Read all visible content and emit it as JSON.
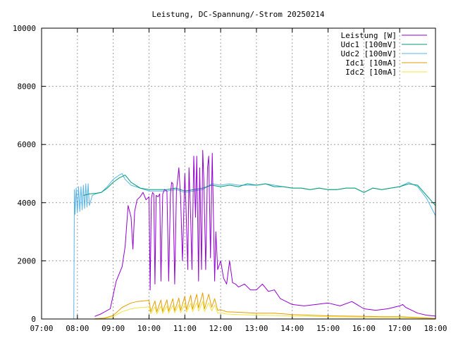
{
  "chart_data": {
    "type": "line",
    "title": "Leistung, DC-Spannung/-Strom 20250214",
    "xlabel": "",
    "ylabel": "",
    "xlim": [
      "07:00",
      "18:00"
    ],
    "ylim": [
      0,
      10000
    ],
    "grid": true,
    "legend_position": "top-right",
    "x_ticks": [
      "07:00",
      "08:00",
      "09:00",
      "10:00",
      "11:00",
      "12:00",
      "13:00",
      "14:00",
      "15:00",
      "16:00",
      "17:00",
      "18:00"
    ],
    "y_ticks": [
      0,
      2000,
      4000,
      6000,
      8000,
      10000
    ],
    "series": [
      {
        "name": "Leistung [W]",
        "color": "#9400d3",
        "x": [
          "08:29",
          "08:40",
          "08:55",
          "09:05",
          "09:15",
          "09:20",
          "09:25",
          "09:30",
          "09:33",
          "09:36",
          "09:40",
          "09:45",
          "09:50",
          "09:55",
          "10:00",
          "10:02",
          "10:04",
          "10:06",
          "10:08",
          "10:10",
          "10:12",
          "10:15",
          "10:18",
          "10:20",
          "10:23",
          "10:26",
          "10:30",
          "10:33",
          "10:36",
          "10:38",
          "10:40",
          "10:43",
          "10:46",
          "10:50",
          "10:53",
          "10:56",
          "11:00",
          "11:02",
          "11:05",
          "11:07",
          "11:10",
          "11:12",
          "11:15",
          "11:18",
          "11:20",
          "11:23",
          "11:25",
          "11:28",
          "11:30",
          "11:32",
          "11:35",
          "11:38",
          "11:40",
          "11:43",
          "11:46",
          "11:50",
          "11:52",
          "11:55",
          "12:00",
          "12:05",
          "12:10",
          "12:15",
          "12:20",
          "12:25",
          "12:30",
          "12:40",
          "12:50",
          "13:00",
          "13:10",
          "13:20",
          "13:30",
          "13:40",
          "14:00",
          "14:20",
          "14:40",
          "15:00",
          "15:20",
          "15:40",
          "16:00",
          "16:20",
          "16:40",
          "17:00",
          "17:05",
          "17:10",
          "17:20",
          "17:30",
          "17:45",
          "18:00"
        ],
        "values": [
          90,
          180,
          350,
          1300,
          1800,
          2500,
          3900,
          3500,
          2400,
          3700,
          4100,
          4200,
          4350,
          4100,
          4200,
          1000,
          4150,
          4350,
          4300,
          1200,
          4250,
          4200,
          4300,
          1300,
          4300,
          4450,
          4400,
          1300,
          4300,
          4700,
          4650,
          1200,
          4400,
          5200,
          4200,
          2000,
          5000,
          3800,
          1700,
          5200,
          3400,
          1700,
          5600,
          3500,
          5600,
          1300,
          5200,
          1700,
          5800,
          4700,
          1700,
          5200,
          5600,
          2100,
          5700,
          1300,
          3000,
          1700,
          2000,
          1400,
          1200,
          2000,
          1250,
          1200,
          1100,
          1200,
          1000,
          1000,
          1200,
          950,
          1000,
          700,
          500,
          450,
          500,
          550,
          450,
          600,
          350,
          300,
          350,
          450,
          500,
          400,
          300,
          200,
          130,
          100
        ]
      },
      {
        "name": "Udc1 [100mV]",
        "color": "#009e73",
        "x": [
          "08:10",
          "08:20",
          "08:30",
          "08:40",
          "08:50",
          "09:00",
          "09:10",
          "09:20",
          "09:30",
          "09:45",
          "10:00",
          "10:15",
          "10:30",
          "10:45",
          "11:00",
          "11:15",
          "11:30",
          "11:45",
          "12:00",
          "12:15",
          "12:30",
          "12:45",
          "13:00",
          "13:15",
          "13:30",
          "13:45",
          "14:00",
          "14:15",
          "14:30",
          "14:45",
          "15:00",
          "15:15",
          "15:30",
          "15:45",
          "16:00",
          "16:15",
          "16:30",
          "16:45",
          "17:00",
          "17:15",
          "17:30",
          "17:45",
          "18:00"
        ],
        "values": [
          4250,
          4300,
          4320,
          4350,
          4500,
          4700,
          4850,
          4950,
          4700,
          4500,
          4450,
          4450,
          4450,
          4500,
          4400,
          4450,
          4500,
          4600,
          4550,
          4600,
          4550,
          4650,
          4600,
          4650,
          4550,
          4550,
          4500,
          4500,
          4450,
          4500,
          4450,
          4450,
          4500,
          4500,
          4350,
          4500,
          4450,
          4500,
          4550,
          4650,
          4600,
          4250,
          3900
        ]
      },
      {
        "name": "Udc2 [100mV]",
        "color": "#56b4e9",
        "x": [
          "07:54",
          "07:55",
          "07:56",
          "07:58",
          "08:00",
          "08:02",
          "08:04",
          "08:06",
          "08:08",
          "08:10",
          "08:12",
          "08:14",
          "08:16",
          "08:18",
          "08:20",
          "08:25",
          "08:30",
          "08:40",
          "08:50",
          "09:00",
          "09:10",
          "09:15",
          "09:20",
          "09:30",
          "09:45",
          "10:00",
          "10:15",
          "10:30",
          "10:45",
          "11:00",
          "11:15",
          "11:30",
          "11:45",
          "12:00",
          "12:15",
          "12:30",
          "12:45",
          "13:00",
          "13:15",
          "13:30",
          "13:45",
          "14:00",
          "14:15",
          "14:30",
          "14:45",
          "15:00",
          "15:15",
          "15:30",
          "15:45",
          "16:00",
          "16:15",
          "16:30",
          "16:45",
          "17:00",
          "17:15",
          "17:30",
          "17:45",
          "18:00"
        ],
        "values": [
          0,
          4450,
          3600,
          4500,
          3650,
          4550,
          3700,
          4550,
          3750,
          4600,
          3800,
          4650,
          3850,
          4650,
          3900,
          4250,
          4300,
          4350,
          4550,
          4800,
          4950,
          5000,
          4800,
          4600,
          4500,
          4400,
          4400,
          4400,
          4450,
          4350,
          4400,
          4450,
          4650,
          4600,
          4650,
          4600,
          4600,
          4600,
          4650,
          4600,
          4550,
          4500,
          4500,
          4450,
          4500,
          4450,
          4450,
          4500,
          4500,
          4350,
          4500,
          4450,
          4500,
          4550,
          4700,
          4550,
          4150,
          3550
        ]
      },
      {
        "name": "Idc1 [10mA]",
        "color": "#e69f00",
        "x": [
          "08:29",
          "08:45",
          "09:00",
          "09:15",
          "09:30",
          "09:40",
          "09:50",
          "10:00",
          "10:03",
          "10:10",
          "10:13",
          "10:20",
          "10:23",
          "10:30",
          "10:33",
          "10:40",
          "10:43",
          "10:50",
          "10:53",
          "11:00",
          "11:03",
          "11:10",
          "11:13",
          "11:20",
          "11:23",
          "11:30",
          "11:33",
          "11:40",
          "11:45",
          "11:50",
          "11:55",
          "12:00",
          "12:10",
          "12:30",
          "13:00",
          "13:30",
          "14:00",
          "14:30",
          "15:00",
          "15:30",
          "16:00",
          "16:30",
          "17:00",
          "17:30",
          "18:00"
        ],
        "values": [
          10,
          30,
          120,
          400,
          550,
          600,
          620,
          640,
          250,
          620,
          250,
          650,
          260,
          660,
          270,
          700,
          280,
          720,
          300,
          780,
          320,
          820,
          340,
          850,
          380,
          900,
          350,
          850,
          400,
          700,
          300,
          320,
          250,
          230,
          200,
          200,
          150,
          130,
          110,
          100,
          90,
          80,
          80,
          50,
          20
        ]
      },
      {
        "name": "Idc2 [10mA]",
        "color": "#f0e442",
        "x": [
          "08:29",
          "08:45",
          "09:00",
          "09:15",
          "09:30",
          "09:40",
          "09:50",
          "10:00",
          "10:03",
          "10:10",
          "10:13",
          "10:20",
          "10:23",
          "10:30",
          "10:33",
          "10:40",
          "10:43",
          "10:50",
          "10:53",
          "11:00",
          "11:03",
          "11:10",
          "11:13",
          "11:20",
          "11:23",
          "11:30",
          "11:33",
          "11:40",
          "11:45",
          "11:50",
          "11:55",
          "12:00",
          "12:10",
          "12:30",
          "13:00",
          "13:30",
          "14:00",
          "14:30",
          "15:00",
          "15:30",
          "16:00",
          "16:30",
          "17:00",
          "17:30",
          "18:00"
        ],
        "values": [
          5,
          20,
          80,
          250,
          350,
          380,
          400,
          420,
          180,
          420,
          180,
          440,
          190,
          450,
          200,
          470,
          210,
          490,
          220,
          520,
          240,
          540,
          250,
          560,
          270,
          600,
          250,
          560,
          280,
          480,
          200,
          220,
          170,
          150,
          130,
          120,
          100,
          90,
          80,
          70,
          60,
          55,
          50,
          30,
          10
        ]
      }
    ]
  }
}
